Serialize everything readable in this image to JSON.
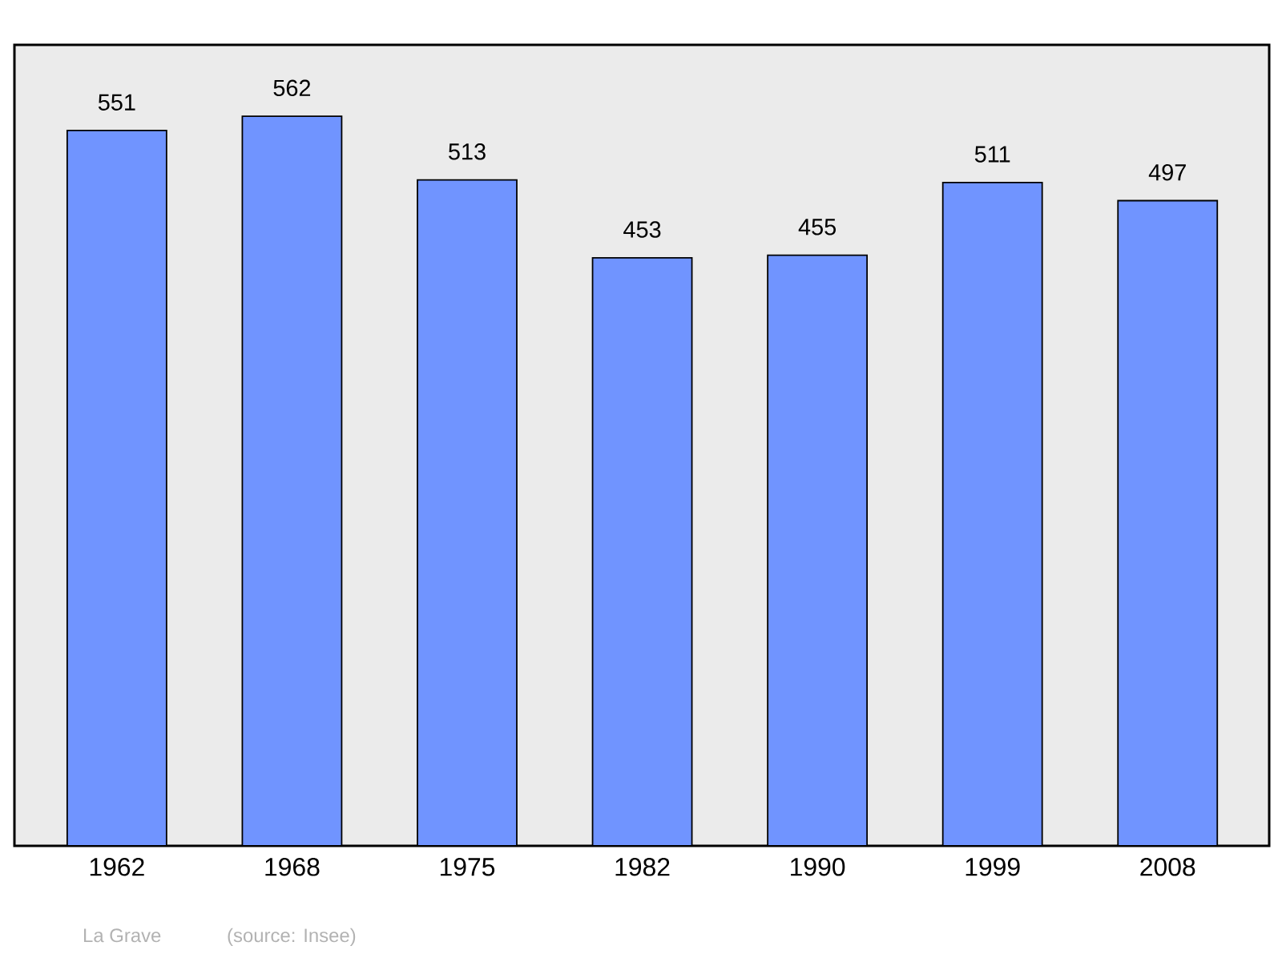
{
  "chart_data": {
    "type": "bar",
    "categories": [
      "1962",
      "1968",
      "1975",
      "1982",
      "1990",
      "1999",
      "2008"
    ],
    "values": [
      551,
      562,
      513,
      453,
      455,
      511,
      497
    ],
    "color": "#7094ff",
    "ylim": [
      0,
      617
    ],
    "tick_labels": "x",
    "data_labels": true,
    "grid": false,
    "annotations": [
      "La Grave",
      "(source: Insee)"
    ]
  }
}
